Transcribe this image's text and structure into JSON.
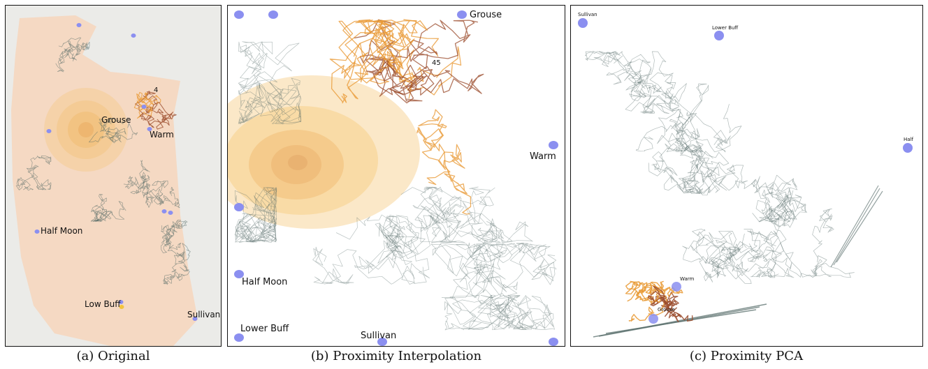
{
  "panel_a": {
    "caption": "(a) Original",
    "labels": {
      "grouse": "Grouse",
      "warm": "Warm",
      "half_moon": "Half Moon",
      "low_buff": "Low Buff",
      "sullivan": "Sullivan",
      "marker": "4"
    }
  },
  "panel_b": {
    "caption": "(b) Proximity Interpolation",
    "labels": {
      "grouse": "Grouse",
      "warm": "Warm",
      "half_moon": "Half Moon",
      "lower_buff": "Lower Buff",
      "sullivan": "Sullivan",
      "marker": "45"
    }
  },
  "panel_c": {
    "caption": "(c) Proximity PCA",
    "labels": {
      "sullivan": "Sullivan",
      "lower_buff": "Lower Buff",
      "half": "Half",
      "warm": "Warm",
      "grouse": "Grouse"
    }
  },
  "colors": {
    "trajectory_gray": "#4f6663",
    "trajectory_orange": "#e8962e",
    "trajectory_brown": "#9a4a2a",
    "landmark_blue": "#8b8ff0",
    "region_fill": "#f6d3b8",
    "heat_fill": "#f2c46f"
  }
}
